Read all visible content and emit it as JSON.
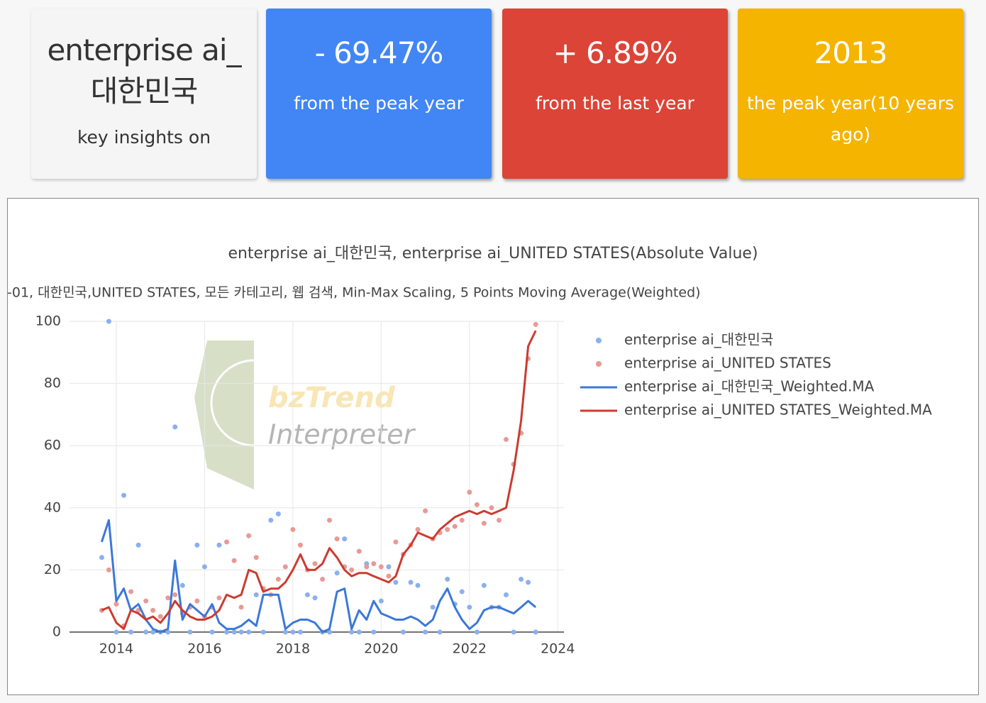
{
  "cards": [
    {
      "value": "enterprise ai_대한민국",
      "label": "key insights on"
    },
    {
      "value": "- 69.47%",
      "label": "from the peak year"
    },
    {
      "value": "+ 6.89%",
      "label": "from the last year"
    },
    {
      "value": "2013",
      "label": "the peak year(10 years ago)"
    }
  ],
  "watermark": {
    "line1": "bzTrend",
    "line2": "Interpreter"
  },
  "chart_data": {
    "type": "line",
    "title": "enterprise ai_대한민국, enterprise ai_UNITED STATES(Absolute Value)",
    "subtitle": "-01, 대한민국,UNITED STATES, 모든 카테고리, 웹 검색, Min-Max Scaling, 5 Points Moving Average(Weighted)",
    "x": [
      2013.67,
      2013.83,
      2014.0,
      2014.17,
      2014.33,
      2014.5,
      2014.67,
      2014.83,
      2015.0,
      2015.17,
      2015.33,
      2015.5,
      2015.67,
      2015.83,
      2016.0,
      2016.17,
      2016.33,
      2016.5,
      2016.67,
      2016.83,
      2017.0,
      2017.17,
      2017.33,
      2017.5,
      2017.67,
      2017.83,
      2018.0,
      2018.17,
      2018.33,
      2018.5,
      2018.67,
      2018.83,
      2019.0,
      2019.17,
      2019.33,
      2019.5,
      2019.67,
      2019.83,
      2020.0,
      2020.17,
      2020.33,
      2020.5,
      2020.67,
      2020.83,
      2021.0,
      2021.17,
      2021.33,
      2021.5,
      2021.67,
      2021.83,
      2022.0,
      2022.17,
      2022.33,
      2022.5,
      2022.67,
      2022.83,
      2023.0,
      2023.17,
      2023.33,
      2023.5
    ],
    "xlim": [
      2012.94,
      2024.14
    ],
    "xticks": [
      2014,
      2016,
      2018,
      2020,
      2022,
      2024
    ],
    "ylim": [
      0,
      100
    ],
    "yticks": [
      0,
      20,
      40,
      60,
      80,
      100
    ],
    "grid": true,
    "legend": "right",
    "series": [
      {
        "name": "enterprise ai_대한민국",
        "mode": "markers",
        "color": "#8ab0ee",
        "values": [
          24,
          100,
          0,
          44,
          0,
          28,
          0,
          0,
          0,
          0,
          66,
          15,
          0,
          28,
          21,
          0,
          28,
          0,
          0,
          0,
          0,
          12,
          0,
          36,
          38,
          0,
          0,
          0,
          12,
          11,
          0,
          0,
          19,
          30,
          0,
          0,
          22,
          0,
          10,
          21,
          16,
          0,
          16,
          15,
          0,
          8,
          0,
          17,
          9,
          13,
          8,
          0,
          15,
          8,
          8,
          12,
          0,
          17,
          16,
          0
        ]
      },
      {
        "name": "enterprise ai_UNITED STATES",
        "mode": "markers",
        "color": "#e89a95",
        "values": [
          7,
          20,
          9,
          2,
          13,
          7,
          10,
          7,
          5,
          11,
          12,
          6,
          8,
          10,
          5,
          8,
          11,
          29,
          23,
          8,
          31,
          24,
          14,
          12,
          17,
          21,
          33,
          28,
          20,
          22,
          17,
          36,
          30,
          21,
          20,
          26,
          21,
          22,
          21,
          18,
          29,
          25,
          28,
          33,
          39,
          30,
          32,
          33,
          34,
          36,
          45,
          41,
          35,
          40,
          36,
          62,
          54,
          64,
          88,
          99
        ]
      },
      {
        "name": "enterprise ai_대한민국_Weighted.MA",
        "mode": "lines",
        "color": "#3c78d8",
        "values": [
          29,
          36,
          10,
          14,
          7,
          9,
          4,
          1,
          0,
          1,
          23,
          4,
          9,
          7,
          5,
          9,
          3,
          1,
          1,
          2,
          4,
          2,
          12,
          12,
          12,
          1,
          3,
          4,
          4,
          3,
          0,
          1,
          13,
          14,
          1,
          7,
          4,
          10,
          6,
          5,
          4,
          4,
          5,
          4,
          2,
          4,
          10,
          14,
          8,
          4,
          1,
          3,
          7,
          8,
          8,
          7,
          6,
          8,
          10,
          8
        ]
      },
      {
        "name": "enterprise ai_UNITED STATES_Weighted.MA",
        "mode": "lines",
        "color": "#cc3b30",
        "values": [
          7,
          8,
          3,
          1,
          7,
          6,
          4,
          5,
          3,
          6,
          10,
          7,
          5,
          4,
          4,
          5,
          7,
          12,
          11,
          12,
          20,
          19,
          13,
          14,
          14,
          16,
          20,
          25,
          20,
          20,
          22,
          27,
          24,
          20,
          18,
          19,
          19,
          18,
          17,
          16,
          18,
          25,
          28,
          32,
          31,
          30,
          33,
          35,
          37,
          38,
          39,
          38,
          39,
          38,
          39,
          40,
          52,
          68,
          92,
          97
        ]
      }
    ]
  }
}
